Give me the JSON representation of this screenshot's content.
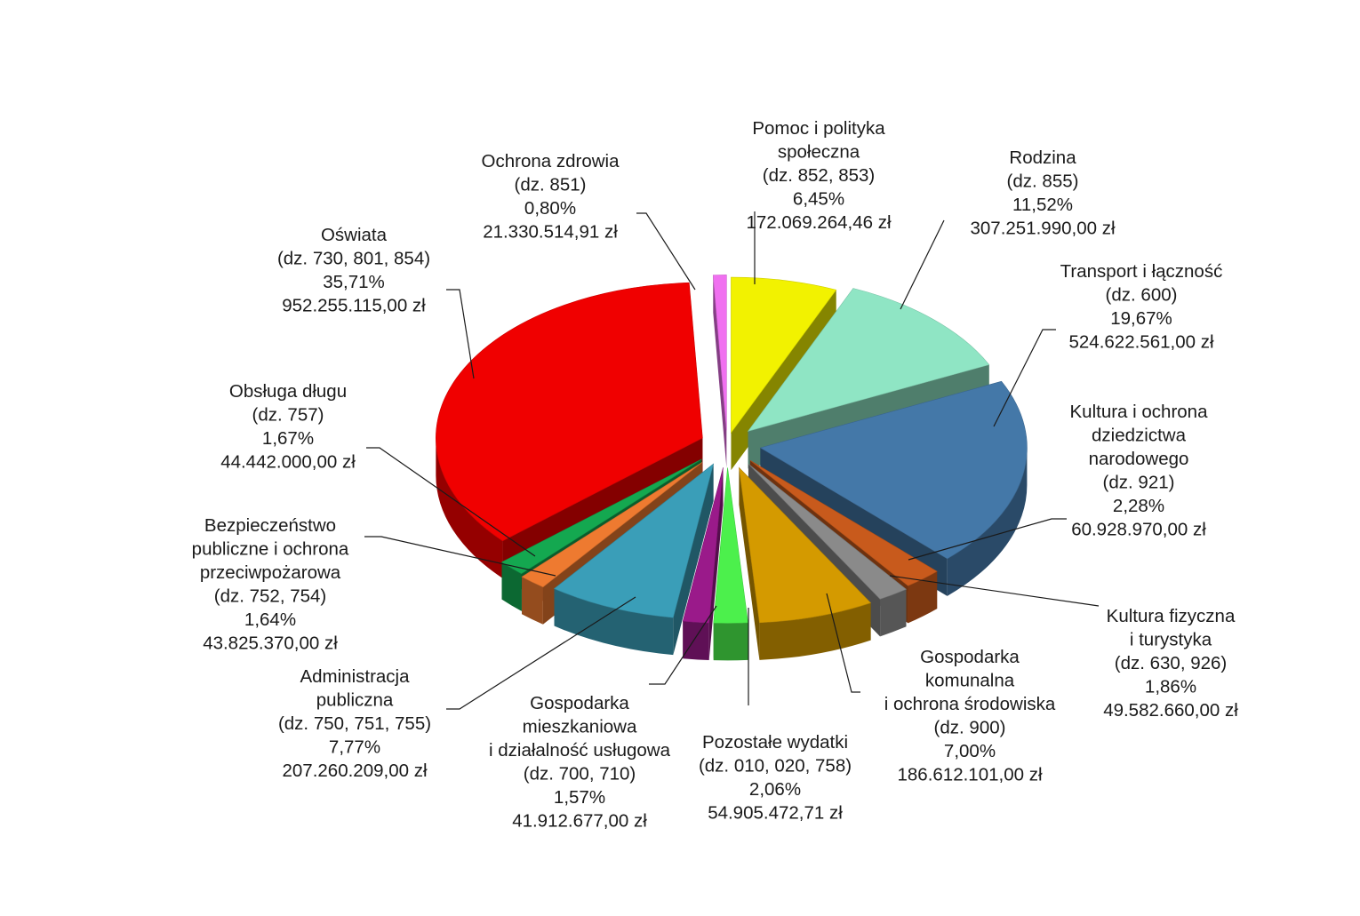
{
  "chart_data": {
    "type": "pie",
    "style": "3d-exploded",
    "slices": [
      {
        "name": "Pomoc i polityka społeczna",
        "code": "(dz. 852, 853)",
        "percent": "6,45%",
        "amount": "172.069.264,46 zł",
        "value": 6.45,
        "color": "#f2f200"
      },
      {
        "name": "Rodzina",
        "code": "(dz. 855)",
        "percent": "11,52%",
        "amount": "307.251.990,00 zł",
        "value": 11.52,
        "color": "#8fe5c4"
      },
      {
        "name": "Transport i łączność",
        "code": "(dz. 600)",
        "percent": "19,67%",
        "amount": "524.622.561,00 zł",
        "value": 19.67,
        "color": "#4478a8"
      },
      {
        "name": "Kultura i ochrona dziedzictwa narodowego",
        "code": "(dz. 921)",
        "percent": "2,28%",
        "amount": "60.928.970,00 zł",
        "value": 2.28,
        "color": "#c85a1c"
      },
      {
        "name": "Kultura fizyczna i turystyka",
        "code": "(dz. 630, 926)",
        "percent": "1,86%",
        "amount": "49.582.660,00 zł",
        "value": 1.86,
        "color": "#8a8a8a"
      },
      {
        "name": "Gospodarka komunalna i ochrona środowiska",
        "code": "(dz. 900)",
        "percent": "7,00%",
        "amount": "186.612.101,00 zł",
        "value": 7.0,
        "color": "#d49a00"
      },
      {
        "name": "Pozostałe wydatki",
        "code": "(dz. 010, 020, 758)",
        "percent": "2,06%",
        "amount": "54.905.472,71 zł",
        "value": 2.06,
        "color": "#4cf04c"
      },
      {
        "name": "Gospodarka mieszkaniowa i działalność usługowa",
        "code": "(dz. 700, 710)",
        "percent": "1,57%",
        "amount": "41.912.677,00 zł",
        "value": 1.57,
        "color": "#9a1a8a"
      },
      {
        "name": "Administracja publiczna",
        "code": "(dz. 750, 751, 755)",
        "percent": "7,77%",
        "amount": "207.260.209,00 zł",
        "value": 7.77,
        "color": "#3a9eb8"
      },
      {
        "name": "Bezpieczeństwo publiczne i ochrona przeciwpożarowa",
        "code": "(dz. 752, 754)",
        "percent": "1,64%",
        "amount": "43.825.370,00 zł",
        "value": 1.64,
        "color": "#ee7a30"
      },
      {
        "name": "Obsługa długu",
        "code": "(dz. 757)",
        "percent": "1,67%",
        "amount": "44.442.000,00 zł",
        "value": 1.67,
        "color": "#14a850"
      },
      {
        "name": "Oświata",
        "code": "(dz. 730, 801, 854)",
        "percent": "35,71%",
        "amount": "952.255.115,00 zł",
        "value": 35.71,
        "color": "#f00000"
      },
      {
        "name": "Ochrona zdrowia",
        "code": "(dz. 851)",
        "percent": "0,80%",
        "amount": "21.330.514,91 zł",
        "value": 0.8,
        "color": "#f070f0"
      }
    ]
  },
  "labels": [
    {
      "lines": [
        "Pomoc i polityka",
        "społeczna",
        "(dz. 852, 853)",
        "6,45%",
        "172.069.264,46 zł"
      ]
    },
    {
      "lines": [
        "Rodzina",
        "(dz. 855)",
        "11,52%",
        "307.251.990,00 zł"
      ]
    },
    {
      "lines": [
        "Transport i łączność",
        "(dz. 600)",
        "19,67%",
        "524.622.561,00 zł"
      ]
    },
    {
      "lines": [
        "Kultura i ochrona",
        "dziedzictwa",
        "narodowego",
        "(dz. 921)",
        "2,28%",
        "60.928.970,00 zł"
      ]
    },
    {
      "lines": [
        "Kultura fizyczna",
        "i turystyka",
        "(dz. 630, 926)",
        "1,86%",
        "49.582.660,00 zł"
      ]
    },
    {
      "lines": [
        "Gospodarka",
        "komunalna",
        "i ochrona środowiska",
        "(dz. 900)",
        "7,00%",
        "186.612.101,00 zł"
      ]
    },
    {
      "lines": [
        "Pozostałe wydatki",
        "(dz. 010, 020, 758)",
        "2,06%",
        "54.905.472,71 zł"
      ]
    },
    {
      "lines": [
        "Gospodarka",
        "mieszkaniowa",
        "i działalność usługowa",
        "(dz. 700, 710)",
        "1,57%",
        "41.912.677,00 zł"
      ]
    },
    {
      "lines": [
        "Administracja",
        "publiczna",
        "(dz. 750, 751, 755)",
        "7,77%",
        "207.260.209,00 zł"
      ]
    },
    {
      "lines": [
        "Bezpieczeństwo",
        "publiczne i ochrona",
        "przeciwpożarowa",
        "(dz. 752, 754)",
        "1,64%",
        "43.825.370,00 zł"
      ]
    },
    {
      "lines": [
        "Obsługa długu",
        "(dz. 757)",
        "1,67%",
        "44.442.000,00 zł"
      ]
    },
    {
      "lines": [
        "Oświata",
        "(dz. 730, 801, 854)",
        "35,71%",
        "952.255.115,00 zł"
      ]
    },
    {
      "lines": [
        "Ochrona zdrowia",
        "(dz. 851)",
        "0,80%",
        "21.330.514,91 zł"
      ]
    }
  ]
}
